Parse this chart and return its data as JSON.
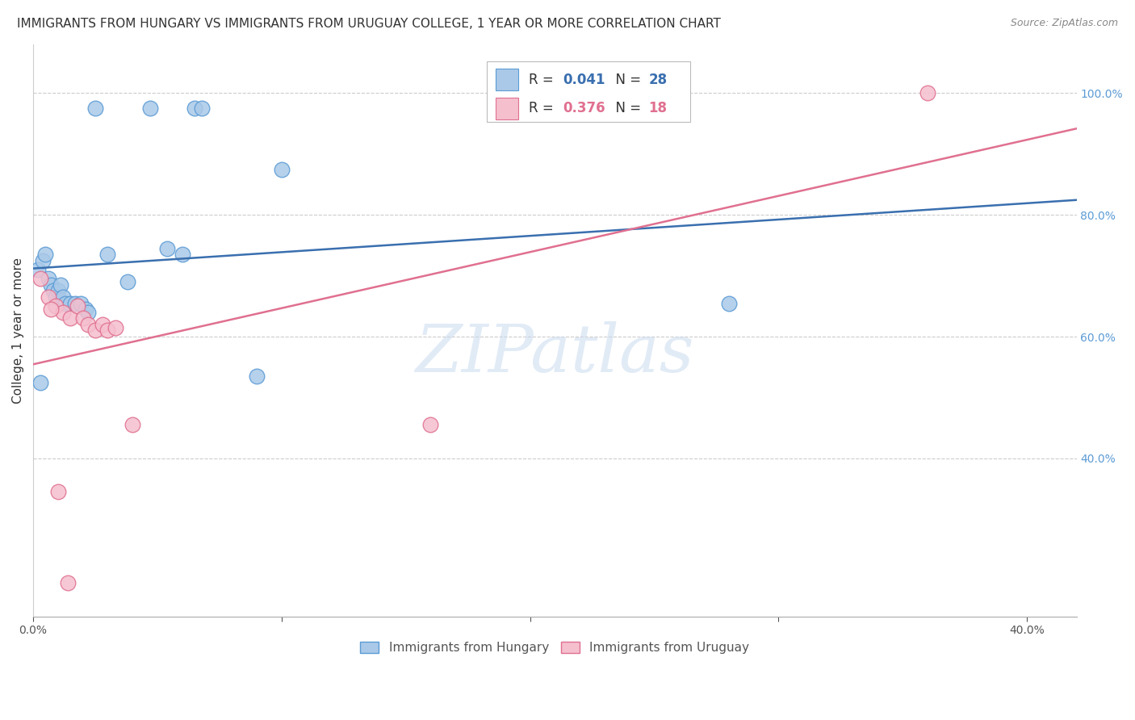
{
  "title": "IMMIGRANTS FROM HUNGARY VS IMMIGRANTS FROM URUGUAY COLLEGE, 1 YEAR OR MORE CORRELATION CHART",
  "source": "Source: ZipAtlas.com",
  "ylabel": "College, 1 year or more",
  "xlim": [
    0.0,
    0.42
  ],
  "ylim": [
    0.14,
    1.08
  ],
  "hungary_x": [
    0.025,
    0.047,
    0.065,
    0.068,
    0.002,
    0.004,
    0.006,
    0.007,
    0.008,
    0.009,
    0.01,
    0.011,
    0.012,
    0.013,
    0.015,
    0.017,
    0.019,
    0.021,
    0.022,
    0.03,
    0.038,
    0.054,
    0.06,
    0.09,
    0.1,
    0.28,
    0.003,
    0.005
  ],
  "hungary_y": [
    0.975,
    0.975,
    0.975,
    0.975,
    0.71,
    0.725,
    0.695,
    0.685,
    0.675,
    0.665,
    0.675,
    0.685,
    0.665,
    0.655,
    0.655,
    0.655,
    0.655,
    0.645,
    0.64,
    0.735,
    0.69,
    0.745,
    0.735,
    0.535,
    0.875,
    0.655,
    0.525,
    0.735
  ],
  "uruguay_x": [
    0.003,
    0.006,
    0.009,
    0.012,
    0.015,
    0.018,
    0.02,
    0.022,
    0.025,
    0.028,
    0.03,
    0.033,
    0.04,
    0.16,
    0.36,
    0.01,
    0.014,
    0.007
  ],
  "uruguay_y": [
    0.695,
    0.665,
    0.65,
    0.64,
    0.63,
    0.65,
    0.63,
    0.62,
    0.61,
    0.62,
    0.61,
    0.615,
    0.455,
    0.455,
    1.0,
    0.345,
    0.195,
    0.645
  ],
  "hungary_color": "#aac9e8",
  "hungary_edge": "#5b9bd5",
  "uruguay_color": "#f5bfce",
  "uruguay_edge": "#e07090",
  "trend_hungary_color": "#3a6faf",
  "trend_uruguay_color": "#e07090",
  "R_hungary": 0.041,
  "N_hungary": 28,
  "R_uruguay": 0.376,
  "N_uruguay": 18,
  "legend_hungary": "Immigrants from Hungary",
  "legend_uruguay": "Immigrants from Uruguay",
  "watermark": "ZIPatlas",
  "background_color": "#ffffff"
}
